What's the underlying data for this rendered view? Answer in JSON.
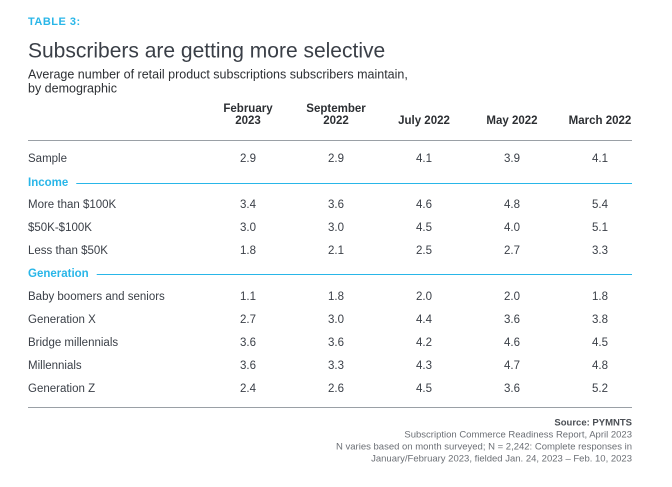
{
  "label": "TABLE 3:",
  "title": "Subscribers are getting more selective",
  "subtitle": [
    "Average number of retail product subscriptions subscribers maintain,",
    "by demographic"
  ],
  "table": {
    "columns": [
      [
        "February",
        "2023"
      ],
      [
        "September",
        "2022"
      ],
      [
        "July 2022"
      ],
      [
        "May 2022"
      ],
      [
        "March 2022"
      ]
    ],
    "rows": [
      {
        "label": "Sample",
        "values": [
          "2.9",
          "2.9",
          "4.1",
          "3.9",
          "4.1"
        ]
      },
      {
        "heading": "Income"
      },
      {
        "label": "More than $100K",
        "values": [
          "3.4",
          "3.6",
          "4.6",
          "4.8",
          "5.4"
        ]
      },
      {
        "label": "$50K-$100K",
        "values": [
          "3.0",
          "3.0",
          "4.5",
          "4.0",
          "5.1"
        ]
      },
      {
        "label": "Less than $50K",
        "values": [
          "1.8",
          "2.1",
          "2.5",
          "2.7",
          "3.3"
        ]
      },
      {
        "heading": "Generation"
      },
      {
        "label": "Baby boomers and seniors",
        "values": [
          "1.1",
          "1.8",
          "2.0",
          "2.0",
          "1.8"
        ]
      },
      {
        "label": "Generation X",
        "values": [
          "2.7",
          "3.0",
          "4.4",
          "3.6",
          "3.8"
        ]
      },
      {
        "label": "Bridge millennials",
        "values": [
          "3.6",
          "3.6",
          "4.2",
          "4.6",
          "4.5"
        ]
      },
      {
        "label": "Millennials",
        "values": [
          "3.6",
          "3.3",
          "4.3",
          "4.7",
          "4.8"
        ]
      },
      {
        "label": "Generation Z",
        "values": [
          "2.4",
          "2.6",
          "4.5",
          "3.6",
          "5.2"
        ]
      }
    ]
  },
  "source": {
    "title": "Source: PYMNTS",
    "lines": [
      "Subscription Commerce Readiness Report, April 2023",
      "N varies based on month surveyed; N = 2,242: Complete responses in",
      "January/February 2023, fielded Jan. 24, 2023 – Feb. 10, 2023"
    ]
  }
}
